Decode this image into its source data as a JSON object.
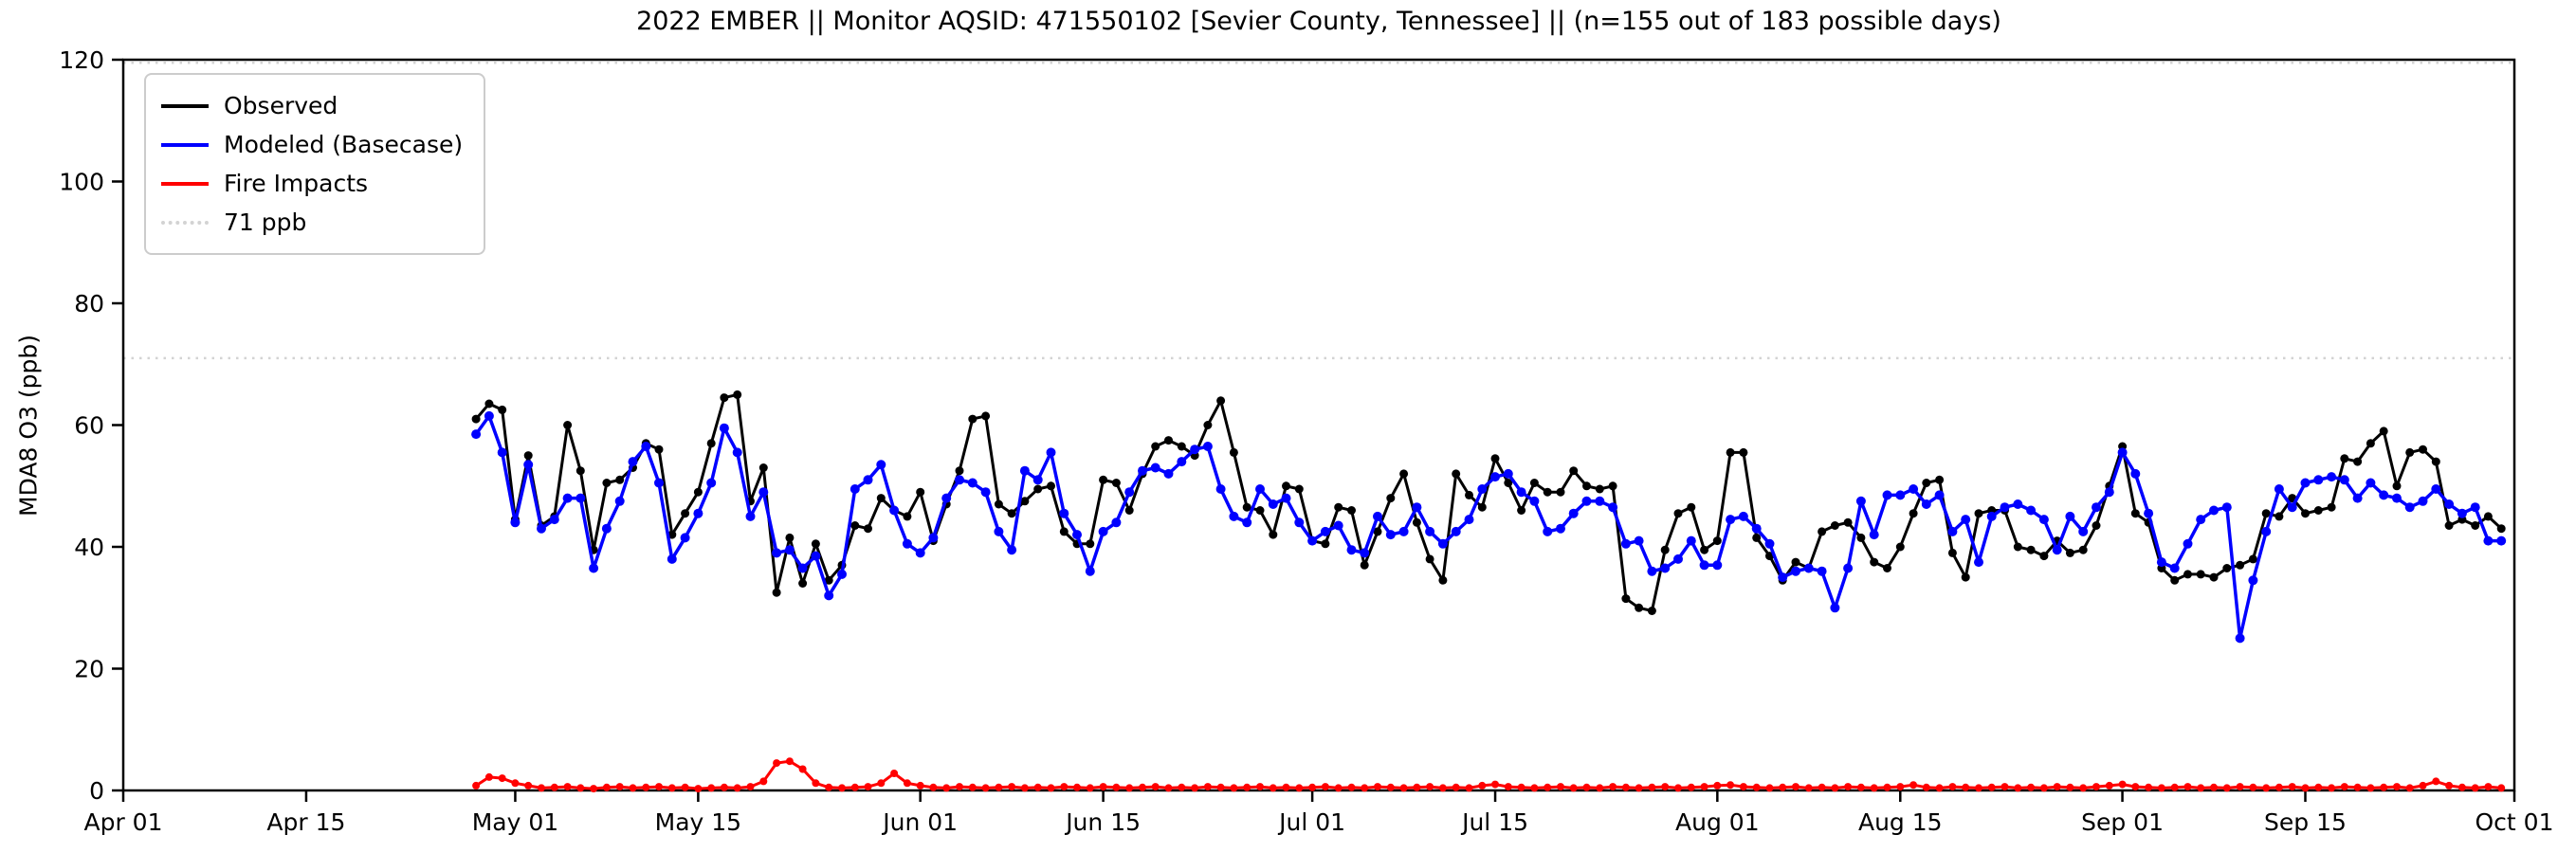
{
  "figure": {
    "title": "2022 EMBER || Monitor AQSID: 471550102 [Sevier County, Tennessee] || (n=155 out of 183 possible days)",
    "y_axis_label": "MDA8 O3 (ppb)",
    "background_color": "#ffffff",
    "axis_color": "#000000"
  },
  "legend": {
    "position": "upper left",
    "items": [
      {
        "label": "Observed",
        "color": "#000000",
        "line_style": "solid"
      },
      {
        "label": "Modeled (Basecase)",
        "color": "#0000ff",
        "line_style": "solid"
      },
      {
        "label": "Fire Impacts",
        "color": "#ff0000",
        "line_style": "solid"
      },
      {
        "label": "71 ppb",
        "color": "#d3d3d3",
        "line_style": "dotted"
      }
    ]
  },
  "chart_data": {
    "type": "line",
    "title": "2022 EMBER || Monitor AQSID: 471550102 [Sevier County, Tennessee] || (n=155 out of 183 possible days)",
    "xlabel": "",
    "ylabel": "MDA8 O3 (ppb)",
    "ylim": [
      0,
      120
    ],
    "y_ticks": [
      0,
      20,
      40,
      60,
      80,
      100,
      120
    ],
    "x_domain": {
      "start_label": "Apr 01",
      "end_label": "Oct 01",
      "total_days": 183
    },
    "x_tick_labels": [
      "Apr 01",
      "Apr 15",
      "May 01",
      "May 15",
      "Jun 01",
      "Jun 15",
      "Jul 01",
      "Jul 15",
      "Aug 01",
      "Aug 15",
      "Sep 01",
      "Sep 15",
      "Oct 01"
    ],
    "x_tick_day_offsets": [
      0,
      14,
      30,
      44,
      61,
      75,
      91,
      105,
      122,
      136,
      153,
      167,
      183
    ],
    "grid": false,
    "legend_position": "upper left",
    "reference_lines": [
      {
        "label": "71 ppb",
        "value": 71,
        "color": "#d3d3d3",
        "style": "dotted"
      },
      {
        "label": "",
        "value": 119.5,
        "color": "#d3d3d3",
        "style": "dotted"
      }
    ],
    "series_start": {
      "date": "Apr 28",
      "day_offset_from_apr01": 27,
      "cadence": "daily",
      "n_points": 156
    },
    "series": [
      {
        "name": "Observed",
        "color": "#000000",
        "marker": "circle",
        "marker_radius": 4.5,
        "line_width": 3,
        "values": [
          61,
          63.5,
          62.5,
          44.5,
          55,
          43.5,
          45,
          60,
          52.5,
          39.5,
          50.5,
          51,
          53,
          57,
          56,
          42,
          45.5,
          49,
          57,
          64.5,
          65,
          47.5,
          53,
          32.5,
          41.5,
          34,
          40.5,
          34.5,
          37,
          43.5,
          43,
          48,
          46,
          45,
          49,
          41,
          47,
          52.5,
          61,
          61.5,
          47,
          45.5,
          47.5,
          49.5,
          50,
          42.5,
          40.5,
          40.5,
          51,
          50.5,
          46,
          52,
          56.5,
          57.5,
          56.5,
          55,
          60,
          64,
          55.5,
          46.5,
          46,
          42,
          50,
          49.5,
          41,
          40.5,
          46.5,
          46,
          37,
          42.5,
          48,
          52,
          44,
          38,
          34.5,
          52,
          48.5,
          46.5,
          54.5,
          50.5,
          46,
          50.5,
          49,
          49,
          52.5,
          50,
          49.5,
          50,
          31.5,
          30,
          29.5,
          39.5,
          45.5,
          46.5,
          39.5,
          41,
          55.5,
          55.5,
          41.5,
          38.5,
          34.5,
          37.5,
          36.5,
          42.5,
          43.5,
          44,
          41.5,
          37.5,
          36.5,
          40,
          45.5,
          50.5,
          51,
          39,
          35,
          45.5,
          46,
          46,
          40,
          39.5,
          38.5,
          41,
          39,
          39.5,
          43.5,
          50,
          56.5,
          45.5,
          44,
          36.5,
          34.5,
          35.5,
          35.5,
          35,
          36.5,
          37,
          38,
          45.5,
          45,
          48,
          45.5,
          46,
          46.5,
          54.5,
          54,
          57,
          59,
          50,
          55.5,
          56,
          54,
          43.5,
          44.5,
          43.5,
          45,
          43
        ]
      },
      {
        "name": "Modeled (Basecase)",
        "color": "#0000ff",
        "marker": "circle",
        "marker_radius": 5,
        "line_width": 3.5,
        "values": [
          58.5,
          61.5,
          55.5,
          44,
          53.5,
          43,
          44.5,
          48,
          48,
          36.5,
          43,
          47.5,
          54,
          56.5,
          50.5,
          38,
          41.5,
          45.5,
          50.5,
          59.5,
          55.5,
          45,
          49,
          39,
          39.5,
          36.5,
          38.5,
          32,
          35.5,
          49.5,
          51,
          53.5,
          46,
          40.5,
          39,
          41.5,
          48,
          51,
          50.5,
          49,
          42.5,
          39.5,
          52.5,
          51,
          55.5,
          45.5,
          42,
          36,
          42.5,
          44,
          49,
          52.5,
          53,
          52,
          54,
          56,
          56.5,
          49.5,
          45,
          44,
          49.5,
          47,
          48,
          44,
          41,
          42.5,
          43.5,
          39.5,
          39,
          45,
          42,
          42.5,
          46.5,
          42.5,
          40.5,
          42.5,
          44.5,
          49.5,
          51.5,
          52,
          49,
          47.5,
          42.5,
          43,
          45.5,
          47.5,
          47.5,
          46.5,
          40.5,
          41,
          36,
          36.5,
          38,
          41,
          37,
          37,
          44.5,
          45,
          43,
          40.5,
          35,
          36,
          36.5,
          36,
          30,
          36.5,
          47.5,
          42,
          48.5,
          48.5,
          49.5,
          47,
          48.5,
          42.5,
          44.5,
          37.5,
          45,
          46.5,
          47,
          46,
          44.5,
          39.5,
          45,
          42.5,
          46.5,
          49,
          55.5,
          52,
          45.5,
          37.5,
          36.5,
          40.5,
          44.5,
          46,
          46.5,
          25,
          34.5,
          42.5,
          49.5,
          46.5,
          50.5,
          51,
          51.5,
          51,
          48,
          50.5,
          48.5,
          48,
          46.5,
          47.5,
          49.5,
          47,
          45.5,
          46.5,
          41,
          41
        ]
      },
      {
        "name": "Fire Impacts",
        "color": "#ff0000",
        "marker": "circle",
        "marker_radius": 4,
        "line_width": 3,
        "values": [
          0.8,
          2.2,
          2,
          1.2,
          0.8,
          0.4,
          0.5,
          0.6,
          0.4,
          0.3,
          0.5,
          0.6,
          0.4,
          0.5,
          0.6,
          0.4,
          0.5,
          0.3,
          0.4,
          0.5,
          0.4,
          0.6,
          1.5,
          4.5,
          4.8,
          3.5,
          1.2,
          0.5,
          0.4,
          0.5,
          0.6,
          1.2,
          2.8,
          1.2,
          0.8,
          0.5,
          0.4,
          0.6,
          0.5,
          0.4,
          0.5,
          0.6,
          0.4,
          0.5,
          0.4,
          0.6,
          0.5,
          0.4,
          0.6,
          0.5,
          0.4,
          0.5,
          0.6,
          0.4,
          0.5,
          0.4,
          0.6,
          0.5,
          0.4,
          0.5,
          0.6,
          0.4,
          0.5,
          0.4,
          0.5,
          0.6,
          0.4,
          0.5,
          0.4,
          0.6,
          0.5,
          0.4,
          0.5,
          0.6,
          0.4,
          0.5,
          0.4,
          0.8,
          1,
          0.6,
          0.5,
          0.4,
          0.5,
          0.6,
          0.4,
          0.5,
          0.4,
          0.6,
          0.5,
          0.4,
          0.5,
          0.6,
          0.4,
          0.5,
          0.6,
          0.8,
          0.9,
          0.6,
          0.5,
          0.4,
          0.5,
          0.6,
          0.4,
          0.5,
          0.4,
          0.6,
          0.5,
          0.4,
          0.5,
          0.6,
          0.9,
          0.5,
          0.4,
          0.6,
          0.5,
          0.4,
          0.5,
          0.6,
          0.4,
          0.5,
          0.4,
          0.6,
          0.5,
          0.4,
          0.6,
          0.8,
          1,
          0.6,
          0.5,
          0.4,
          0.5,
          0.6,
          0.4,
          0.5,
          0.4,
          0.6,
          0.5,
          0.4,
          0.5,
          0.6,
          0.4,
          0.5,
          0.4,
          0.6,
          0.5,
          0.4,
          0.5,
          0.6,
          0.4,
          0.8,
          1.5,
          0.8,
          0.5,
          0.4,
          0.6,
          0.4
        ]
      }
    ]
  }
}
